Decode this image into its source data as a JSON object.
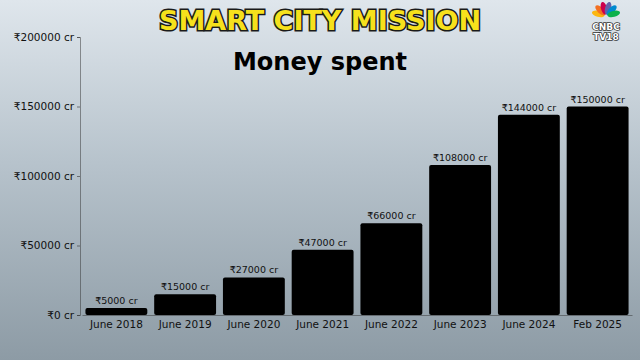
{
  "chart_data": {
    "type": "bar",
    "title": "SMART CITY MISSION",
    "subtitle": "Money spent",
    "annotations": [
      "CNBC",
      "TV18"
    ],
    "categories": [
      "June 2018",
      "June 2019",
      "June 2020",
      "June 2021",
      "June 2022",
      "June 2023",
      "June 2024",
      "Feb 2025"
    ],
    "values": [
      5000,
      15000,
      27000,
      47000,
      66000,
      108000,
      144000,
      150000
    ],
    "value_labels": [
      "₹5000 cr",
      "₹15000 cr",
      "₹27000 cr",
      "₹47000 cr",
      "₹66000 cr",
      "₹108000 cr",
      "₹144000 cr",
      "₹150000 cr"
    ],
    "color": "#000000",
    "data_labels": true,
    "grid": false,
    "ylim": [
      0,
      200000
    ],
    "yticks": [
      {
        "value": 0,
        "label": "₹0 cr"
      },
      {
        "value": 50000,
        "label": "₹50000 cr"
      },
      {
        "value": 100000,
        "label": "₹100000 cr"
      },
      {
        "value": 150000,
        "label": "₹150000 cr"
      },
      {
        "value": 200000,
        "label": "₹200000 cr"
      }
    ]
  }
}
